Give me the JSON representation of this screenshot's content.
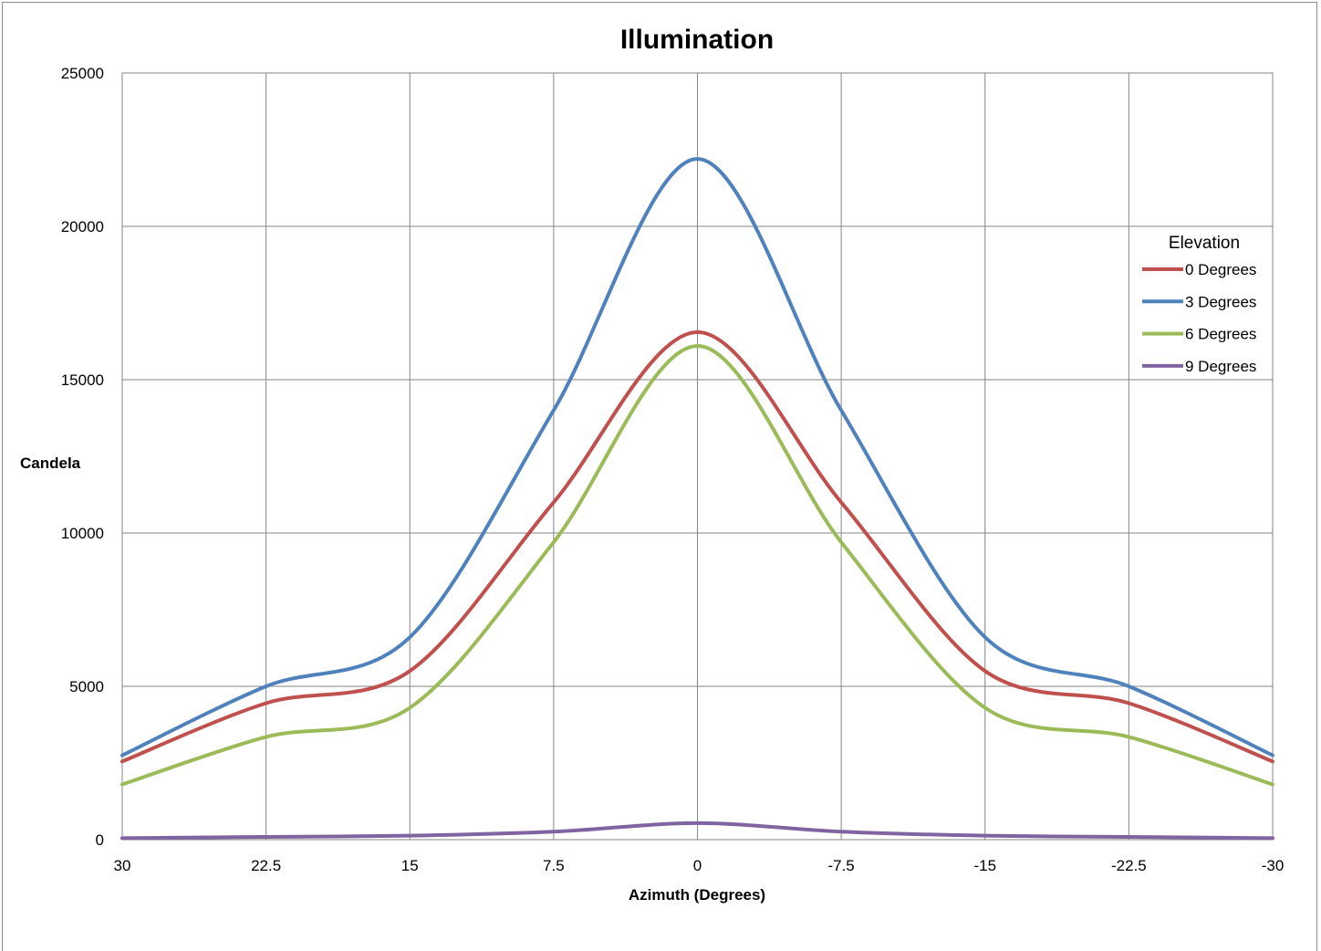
{
  "chart_data": {
    "type": "line",
    "title": "Illumination",
    "xlabel": "Azimuth (Degrees)",
    "ylabel": "Candela",
    "x": [
      30,
      22.5,
      15,
      7.5,
      0,
      -7.5,
      -15,
      -22.5,
      -30
    ],
    "x_tick_labels": [
      "30",
      "22.5",
      "15",
      "7.5",
      "0",
      "-7.5",
      "-15",
      "-22.5",
      "-30"
    ],
    "xlim": [
      30,
      -30
    ],
    "ylim": [
      0,
      25000
    ],
    "y_ticks": [
      0,
      5000,
      10000,
      15000,
      20000,
      25000
    ],
    "y_tick_labels": [
      "0",
      "5000",
      "10000",
      "15000",
      "20000",
      "25000"
    ],
    "grid": true,
    "smooth": true,
    "legend": {
      "title": "Elevation",
      "placement": "right"
    },
    "series": [
      {
        "name": "0 Degrees",
        "color": "#c0504d",
        "values": [
          2550,
          4450,
          5500,
          11000,
          16550,
          11000,
          5500,
          4450,
          2550
        ]
      },
      {
        "name": "3 Degrees",
        "color": "#4f81bd",
        "values": [
          2750,
          5000,
          6600,
          14000,
          22200,
          14000,
          6600,
          5000,
          2750
        ]
      },
      {
        "name": "6 Degrees",
        "color": "#9bbb59",
        "values": [
          1800,
          3350,
          4300,
          9700,
          16100,
          9700,
          4300,
          3350,
          1800
        ]
      },
      {
        "name": "9 Degrees",
        "color": "#8064a2",
        "values": [
          50,
          90,
          130,
          260,
          540,
          260,
          130,
          90,
          50
        ]
      }
    ]
  }
}
